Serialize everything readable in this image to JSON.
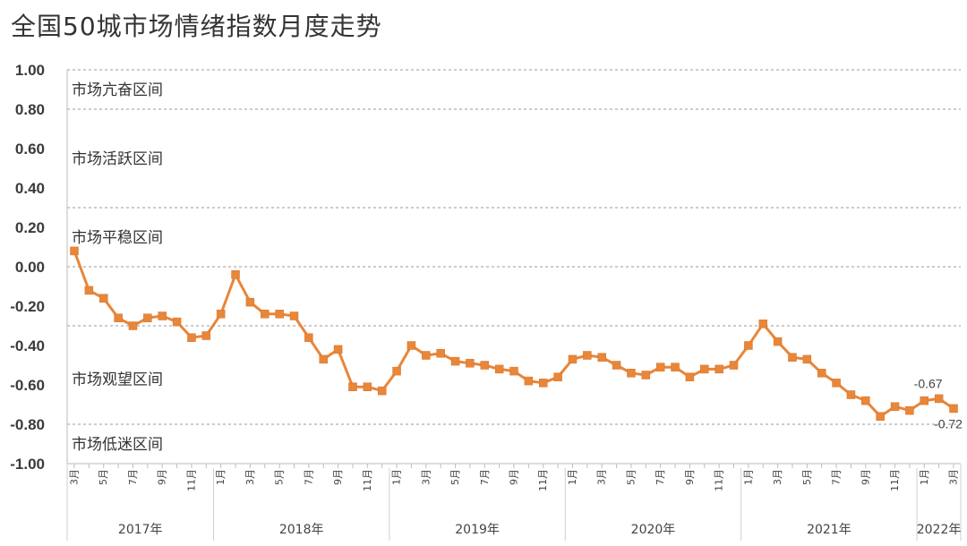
{
  "title": "全国50城市场情绪指数月度走势",
  "chart_data": {
    "type": "line",
    "ylim": [
      -1.0,
      1.0
    ],
    "y_ticks": [
      "1.00",
      "0.80",
      "0.60",
      "0.40",
      "0.20",
      "0.00",
      "-0.20",
      "-0.40",
      "-0.60",
      "-0.80",
      "-1.00"
    ],
    "y_tick_values": [
      1.0,
      0.8,
      0.6,
      0.4,
      0.2,
      0.0,
      -0.2,
      -0.4,
      -0.6,
      -0.8,
      -1.0
    ],
    "zone_boundaries": [
      1.0,
      0.8,
      0.3,
      0.0,
      -0.3,
      -0.8
    ],
    "zones": [
      {
        "label": "市场亢奋区间",
        "y": 0.9
      },
      {
        "label": "市场活跃区间",
        "y": 0.55
      },
      {
        "label": "市场平稳区间",
        "y": 0.15
      },
      {
        "label": "市场观望区间",
        "y": -0.57
      },
      {
        "label": "市场低迷区间",
        "y": -0.9
      }
    ],
    "month_labels": [
      "3月",
      "5月",
      "7月",
      "9月",
      "11月",
      "1月",
      "3月",
      "5月",
      "7月",
      "9月",
      "11月",
      "1月",
      "3月",
      "5月",
      "7月",
      "9月",
      "11月",
      "1月",
      "3月",
      "5月",
      "7月",
      "9月",
      "11月",
      "1月",
      "3月",
      "5月",
      "7月",
      "9月",
      "11月",
      "1月",
      "3月"
    ],
    "month_label_index": [
      0,
      2,
      4,
      6,
      8,
      10,
      12,
      14,
      16,
      18,
      20,
      22,
      24,
      26,
      28,
      30,
      32,
      34,
      36,
      38,
      40,
      42,
      44,
      46,
      48,
      50,
      52,
      54,
      56,
      58,
      60
    ],
    "years": [
      {
        "label": "2017年",
        "start": 0,
        "end": 10
      },
      {
        "label": "2018年",
        "start": 10,
        "end": 22
      },
      {
        "label": "2019年",
        "start": 22,
        "end": 34
      },
      {
        "label": "2020年",
        "start": 34,
        "end": 46
      },
      {
        "label": "2021年",
        "start": 46,
        "end": 58
      },
      {
        "label": "2022年",
        "start": 58,
        "end": 60
      }
    ],
    "series": [
      {
        "color": "#e8863a",
        "values": [
          0.08,
          -0.12,
          -0.16,
          -0.26,
          -0.3,
          -0.26,
          -0.25,
          -0.28,
          -0.36,
          -0.35,
          -0.24,
          -0.04,
          -0.18,
          -0.24,
          -0.24,
          -0.25,
          -0.36,
          -0.47,
          -0.42,
          -0.61,
          -0.61,
          -0.63,
          -0.53,
          -0.4,
          -0.45,
          -0.44,
          -0.48,
          -0.49,
          -0.5,
          -0.52,
          -0.53,
          -0.58,
          -0.59,
          -0.56,
          -0.47,
          -0.45,
          -0.46,
          -0.5,
          -0.54,
          -0.55,
          -0.51,
          -0.51,
          -0.56,
          -0.52,
          -0.52,
          -0.5,
          -0.4,
          -0.29,
          -0.38,
          -0.46,
          -0.47,
          -0.54,
          -0.59,
          -0.65,
          -0.68,
          -0.76,
          -0.71,
          -0.73,
          -0.68,
          -0.67,
          -0.72
        ]
      }
    ],
    "data_labels": [
      {
        "index": 59,
        "text": "-0.67",
        "pos": "above"
      },
      {
        "index": 60,
        "text": "-0.72",
        "pos": "below"
      }
    ]
  }
}
